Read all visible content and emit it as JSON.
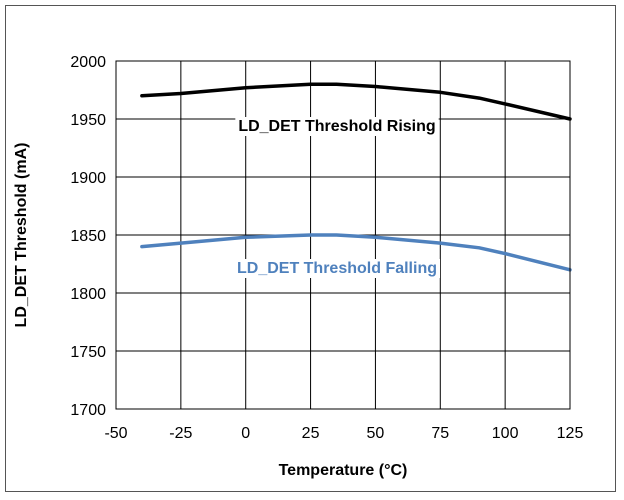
{
  "chart_data": {
    "type": "line",
    "xlabel": "Temperature (°C)",
    "ylabel": "LD_DET Threshold (mA)",
    "xlim": [
      -50,
      125
    ],
    "ylim": [
      1700,
      2000
    ],
    "xticks": [
      -50,
      -25,
      0,
      25,
      50,
      75,
      100,
      125
    ],
    "yticks": [
      1700,
      1750,
      1800,
      1850,
      1900,
      1950,
      2000
    ],
    "grid": true,
    "series": [
      {
        "name": "LD_DET Threshold Rising",
        "color": "#000000",
        "x": [
          -40,
          -25,
          0,
          25,
          35,
          50,
          75,
          90,
          100,
          125
        ],
        "y": [
          1970,
          1972,
          1977,
          1980,
          1980,
          1978,
          1973,
          1968,
          1963,
          1950
        ]
      },
      {
        "name": "LD_DET Threshold Falling",
        "color": "#4f81bd",
        "x": [
          -40,
          -25,
          0,
          25,
          35,
          50,
          75,
          90,
          100,
          125
        ],
        "y": [
          1840,
          1843,
          1848,
          1850,
          1850,
          1848,
          1843,
          1839,
          1834,
          1820
        ]
      }
    ]
  }
}
